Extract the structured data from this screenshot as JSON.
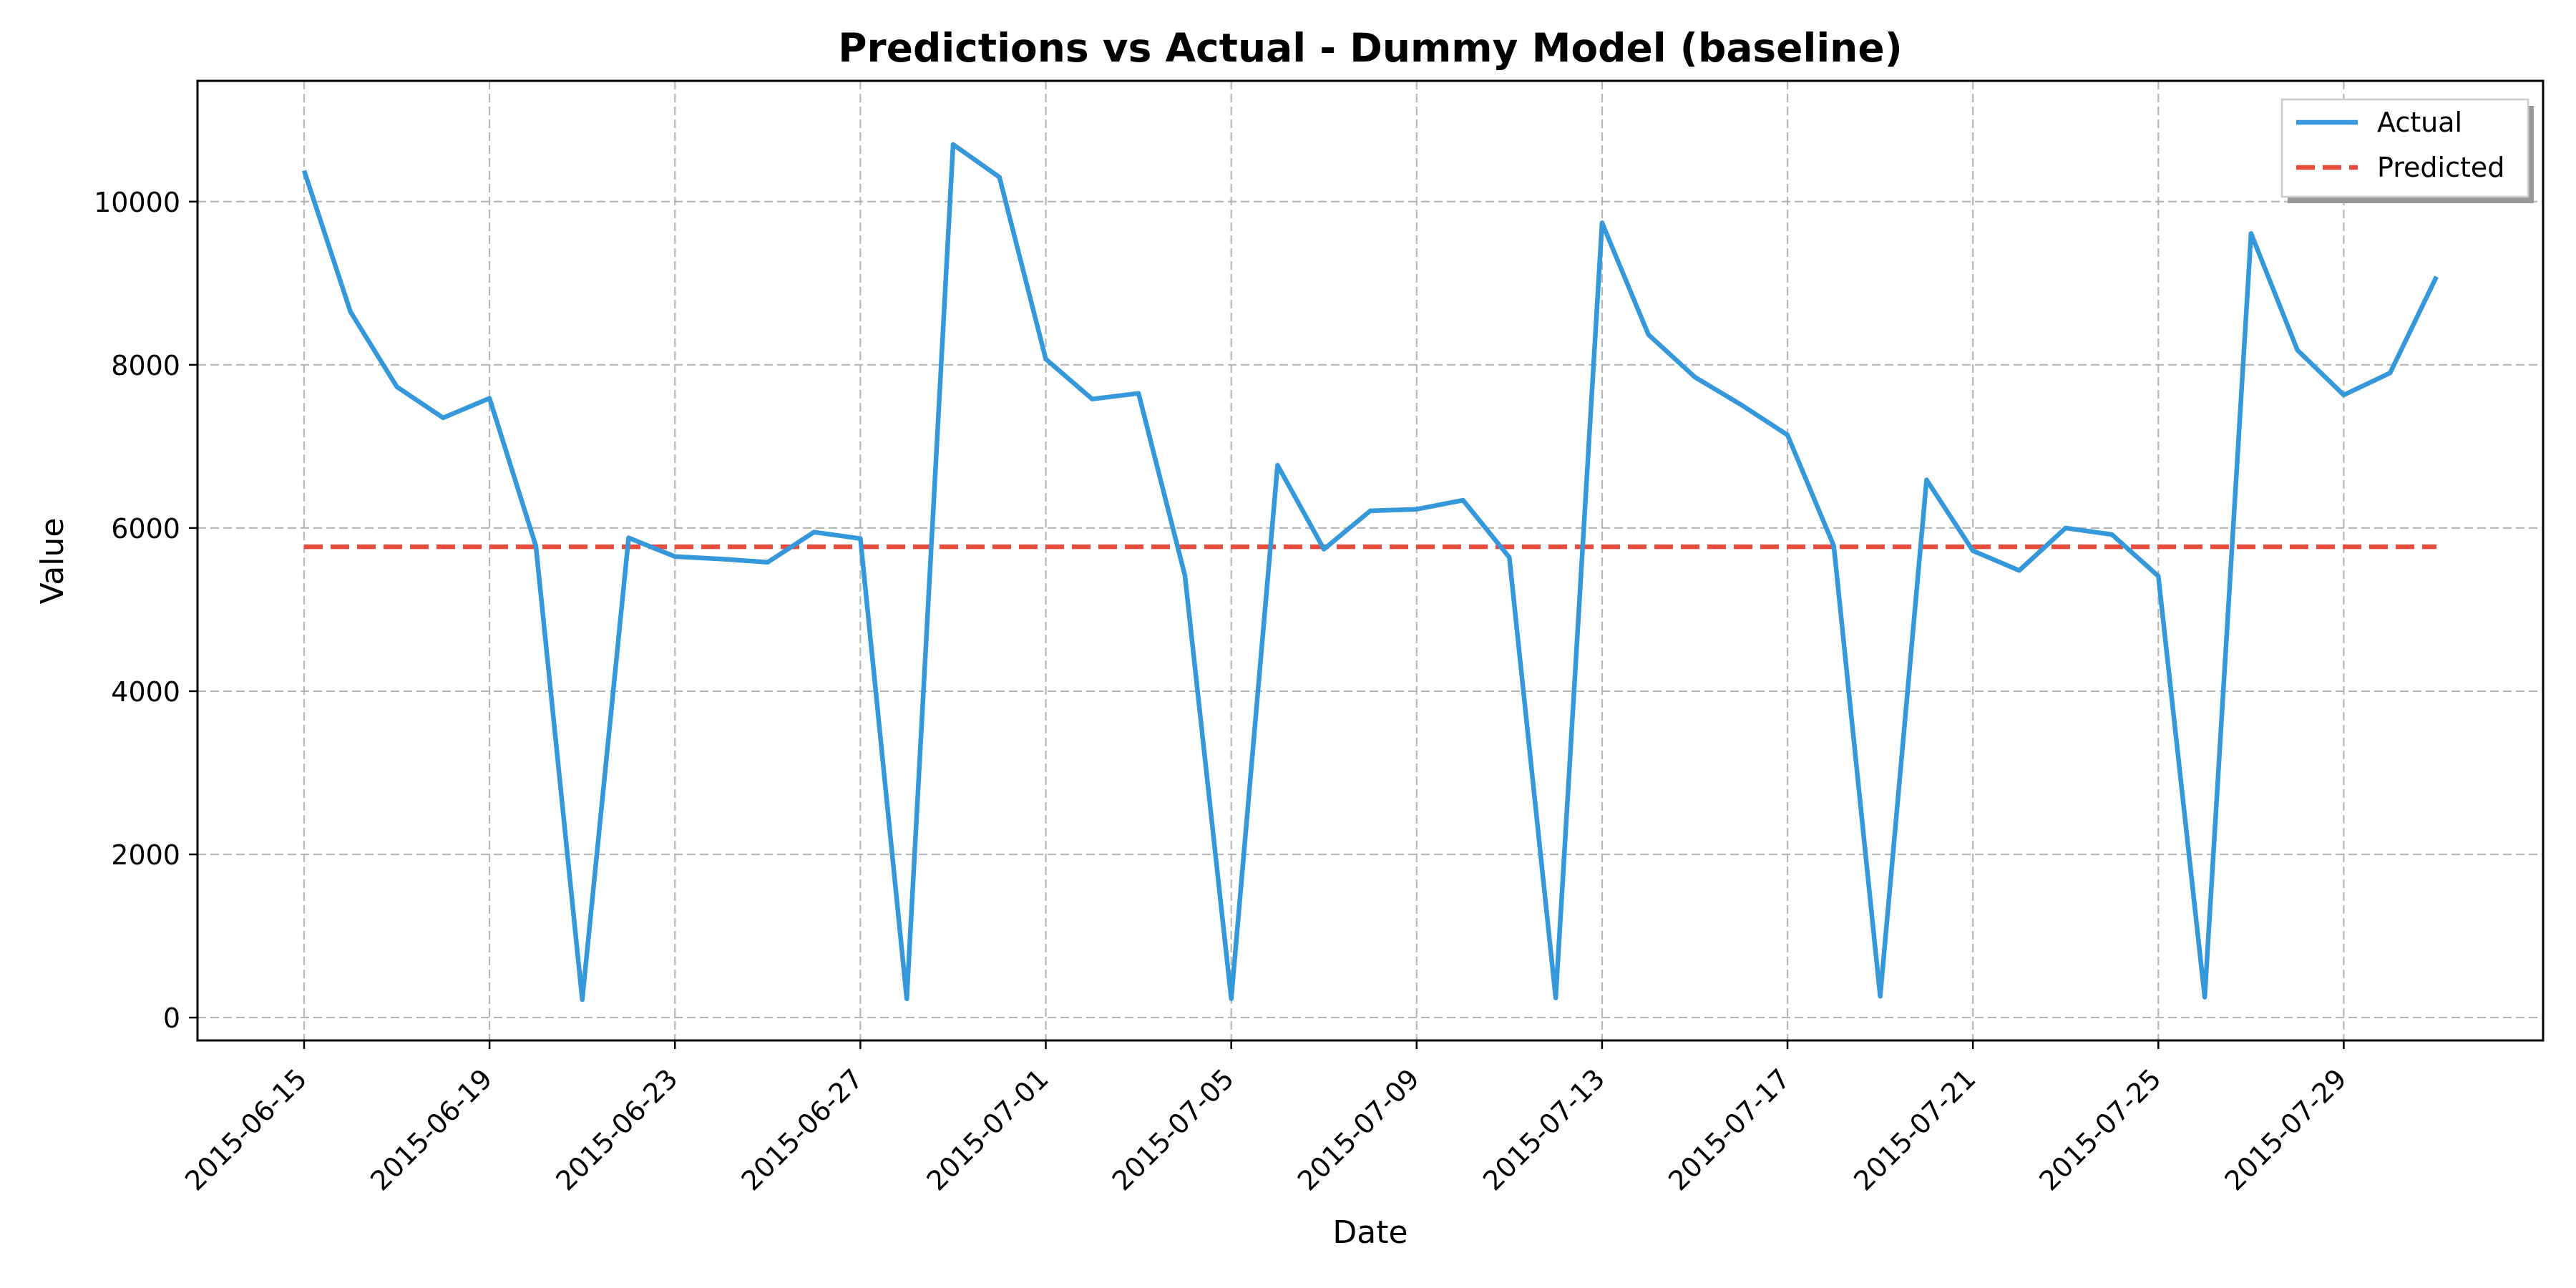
{
  "chart_data": {
    "type": "line",
    "title": "Predictions vs Actual - Dummy Model (baseline)",
    "xlabel": "Date",
    "ylabel": "Value",
    "x_start": "2015-06-15",
    "x_labels": [
      "2015-06-15",
      "2015-06-16",
      "2015-06-17",
      "2015-06-18",
      "2015-06-19",
      "2015-06-20",
      "2015-06-21",
      "2015-06-22",
      "2015-06-23",
      "2015-06-24",
      "2015-06-25",
      "2015-06-26",
      "2015-06-27",
      "2015-06-28",
      "2015-06-29",
      "2015-06-30",
      "2015-07-01",
      "2015-07-02",
      "2015-07-03",
      "2015-07-04",
      "2015-07-05",
      "2015-07-06",
      "2015-07-07",
      "2015-07-08",
      "2015-07-09",
      "2015-07-10",
      "2015-07-11",
      "2015-07-12",
      "2015-07-13",
      "2015-07-14",
      "2015-07-15",
      "2015-07-16",
      "2015-07-17",
      "2015-07-18",
      "2015-07-19",
      "2015-07-20",
      "2015-07-21",
      "2015-07-22",
      "2015-07-23",
      "2015-07-24",
      "2015-07-25",
      "2015-07-26",
      "2015-07-27",
      "2015-07-28",
      "2015-07-29",
      "2015-07-30",
      "2015-07-31"
    ],
    "xticks": [
      "2015-06-15",
      "2015-06-19",
      "2015-06-23",
      "2015-06-27",
      "2015-07-01",
      "2015-07-05",
      "2015-07-09",
      "2015-07-13",
      "2015-07-17",
      "2015-07-21",
      "2015-07-25",
      "2015-07-29"
    ],
    "xtick_index": [
      0,
      4,
      8,
      12,
      16,
      20,
      24,
      28,
      32,
      36,
      40,
      44
    ],
    "xlim": [
      -2.3,
      48.3
    ],
    "ylim": [
      -280,
      11480
    ],
    "yticks": [
      0,
      2000,
      4000,
      6000,
      8000,
      10000
    ],
    "grid": true,
    "legend_position": "top-right",
    "series": [
      {
        "name": "Actual",
        "color": "#3498db",
        "style": "solid",
        "values": [
          10380,
          8650,
          7730,
          7350,
          7590,
          5780,
          220,
          5880,
          5650,
          5620,
          5580,
          5950,
          5870,
          230,
          10700,
          10300,
          8070,
          7580,
          7650,
          5420,
          230,
          6770,
          5740,
          6210,
          6230,
          6340,
          5640,
          240,
          9740,
          8370,
          7850,
          7510,
          7140,
          5780,
          260,
          6590,
          5720,
          5480,
          6000,
          5920,
          5410,
          250,
          9610,
          8180,
          7630,
          7900,
          9080
        ]
      },
      {
        "name": "Predicted",
        "color": "#e74c3c",
        "style": "dashed",
        "values": [
          5770,
          5770,
          5770,
          5770,
          5770,
          5770,
          5770,
          5770,
          5770,
          5770,
          5770,
          5770,
          5770,
          5770,
          5770,
          5770,
          5770,
          5770,
          5770,
          5770,
          5770,
          5770,
          5770,
          5770,
          5770,
          5770,
          5770,
          5770,
          5770,
          5770,
          5770,
          5770,
          5770,
          5770,
          5770,
          5770,
          5770,
          5770,
          5770,
          5770,
          5770,
          5770,
          5770,
          5770,
          5770,
          5770,
          5770
        ]
      }
    ]
  }
}
